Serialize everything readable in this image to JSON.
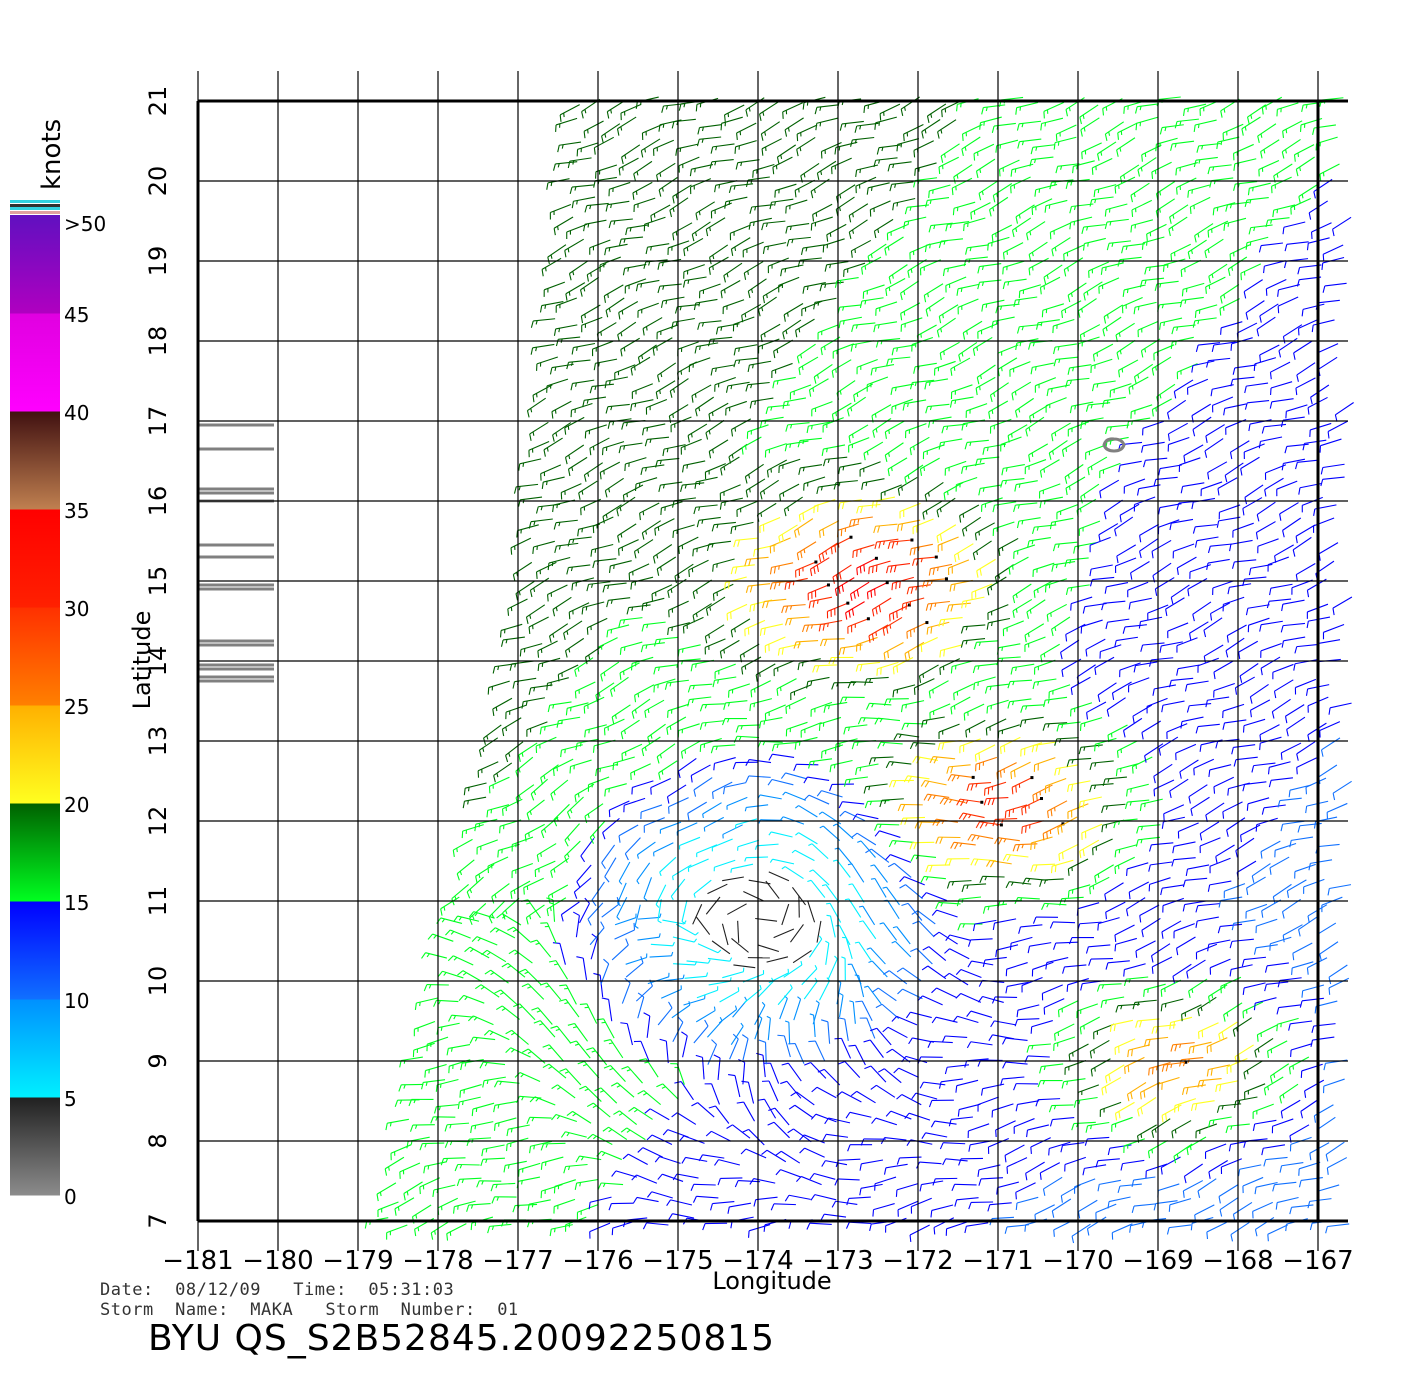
{
  "chart_data": {
    "type": "wind-vector-map",
    "xlabel": "Longitude",
    "ylabel": "Latitude",
    "xlim": [
      -181,
      -167
    ],
    "ylim": [
      7,
      21
    ],
    "xticks": [
      "−181",
      "−180",
      "−179",
      "−178",
      "−177",
      "−176",
      "−175",
      "−174",
      "−173",
      "−172",
      "−171",
      "−170",
      "−169",
      "−168",
      "−167"
    ],
    "yticks": [
      "7",
      "8",
      "9",
      "10",
      "11",
      "12",
      "13",
      "14",
      "15",
      "16",
      "17",
      "18",
      "19",
      "20",
      "21"
    ],
    "grid": true,
    "colorbar": {
      "unit_label": "knots",
      "ticks": [
        "0",
        "5",
        "10",
        "15",
        "20",
        "25",
        "30",
        "35",
        "40",
        "45",
        ">50"
      ],
      "bands": [
        {
          "range": [
            0,
            5
          ],
          "from": "#8c8c8c",
          "to": "#202020"
        },
        {
          "range": [
            5,
            10
          ],
          "from": "#00f0ff",
          "to": "#0090ff"
        },
        {
          "range": [
            10,
            15
          ],
          "from": "#1070ff",
          "to": "#0000ff"
        },
        {
          "range": [
            15,
            20
          ],
          "from": "#00ff20",
          "to": "#006000"
        },
        {
          "range": [
            20,
            25
          ],
          "from": "#ffff20",
          "to": "#ffb000"
        },
        {
          "range": [
            25,
            30
          ],
          "from": "#ff8000",
          "to": "#ff3000"
        },
        {
          "range": [
            30,
            35
          ],
          "from": "#ff2000",
          "to": "#ff0000"
        },
        {
          "range": [
            35,
            40
          ],
          "from": "#c08050",
          "to": "#401010"
        },
        {
          "range": [
            40,
            45
          ],
          "from": "#ff00ff",
          "to": "#e000e0"
        },
        {
          "range": [
            45,
            50
          ],
          "from": "#b000c0",
          "to": "#6010c0"
        }
      ]
    },
    "swath_edge": [
      [
        -176.2,
        21
      ],
      [
        -176.9,
        14.5
      ],
      [
        -177.8,
        10.5
      ],
      [
        -178.6,
        7
      ]
    ],
    "land_feature": {
      "lon": -169.55,
      "lat": 16.7
    },
    "wind_field": {
      "background_direction_deg": 200,
      "regions": [
        {
          "name": "calm-center",
          "lon": -174.0,
          "lat": 10.8,
          "speed_kt": 3
        },
        {
          "name": "high-wind-band-north",
          "lon": -172.5,
          "lat": 15.0,
          "speed_kt": 32
        },
        {
          "name": "high-wind-band-middle",
          "lon": -170.8,
          "lat": 12.2,
          "speed_kt": 30
        },
        {
          "name": "high-wind-band-south",
          "lon": -168.6,
          "lat": 9.0,
          "speed_kt": 28
        },
        {
          "name": "northern-trades",
          "lon": -173.5,
          "lat": 19.5,
          "speed_kt": 17
        },
        {
          "name": "eastern-trades",
          "lon": -168.5,
          "lat": 17.0,
          "speed_kt": 12
        }
      ]
    }
  },
  "meta": {
    "date_line": "Date:  08/12/09   Time:  05:31:03",
    "storm_line": "Storm  Name:  MAKA   Storm  Number:  01",
    "title": "BYU  QS_S2B52845.20092250815"
  }
}
